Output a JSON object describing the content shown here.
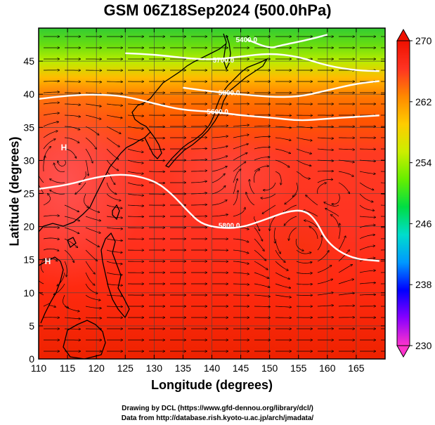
{
  "title": "GSM 06Z18Sep2024 (500.0hPa)",
  "xaxis": {
    "label": "Longitude (degrees)",
    "range": [
      110,
      170
    ],
    "ticks": [
      110,
      115,
      120,
      125,
      130,
      135,
      140,
      145,
      150,
      155,
      160,
      165
    ]
  },
  "yaxis": {
    "label": "Latitude  (degrees)",
    "range": [
      0,
      50
    ],
    "ticks": [
      0,
      5,
      10,
      15,
      20,
      25,
      30,
      35,
      40,
      45
    ]
  },
  "colorbar": {
    "range": [
      230,
      270
    ],
    "ticks": [
      230,
      238,
      246,
      254,
      262,
      270
    ],
    "colors": [
      "#ff33cc",
      "#8800ff",
      "#0000ff",
      "#0099ff",
      "#00ddcc",
      "#00dd44",
      "#66ee00",
      "#ccee00",
      "#ffcc00",
      "#ff8800",
      "#ff3322",
      "#ee1100"
    ]
  },
  "contours": [
    {
      "label": "5800.0",
      "points": [
        [
          110,
          25.7
        ],
        [
          115,
          26.3
        ],
        [
          120,
          27.5
        ],
        [
          125,
          28.0
        ],
        [
          130,
          27.0
        ],
        [
          133,
          25.0
        ],
        [
          136,
          22.2
        ],
        [
          138,
          20.5
        ],
        [
          141,
          19.8
        ],
        [
          145,
          19.8
        ],
        [
          149,
          21.0
        ],
        [
          153,
          22.3
        ],
        [
          156,
          22.5
        ],
        [
          158,
          21.0
        ],
        [
          160,
          17.5
        ],
        [
          164,
          15.2
        ],
        [
          169,
          14.8
        ]
      ]
    },
    {
      "label": "5600.0",
      "points": [
        [
          110,
          39.3
        ],
        [
          115,
          39.8
        ],
        [
          120,
          40.0
        ],
        [
          125,
          39.7
        ],
        [
          130,
          38.6
        ],
        [
          135,
          37.6
        ],
        [
          140,
          37.4
        ],
        [
          145,
          36.8
        ],
        [
          150,
          36.5
        ],
        [
          155,
          36.0
        ],
        [
          160,
          36.3
        ],
        [
          165,
          36.6
        ],
        [
          169,
          36.8
        ]
      ]
    },
    {
      "label": "5800.0",
      "points": [
        [
          135,
          41.0
        ],
        [
          140,
          40.4
        ],
        [
          145,
          40.0
        ],
        [
          150,
          39.6
        ],
        [
          155,
          39.6
        ],
        [
          160,
          40.6
        ],
        [
          165,
          41.6
        ],
        [
          169,
          42.0
        ]
      ]
    },
    {
      "label": "5700.0",
      "points": [
        [
          125,
          46.2
        ],
        [
          130,
          46.0
        ],
        [
          135,
          45.5
        ],
        [
          140,
          45.2
        ],
        [
          145,
          45.7
        ],
        [
          150,
          46.2
        ],
        [
          155,
          45.7
        ],
        [
          160,
          44.3
        ],
        [
          165,
          43.6
        ],
        [
          169,
          43.5
        ]
      ]
    },
    {
      "label": "5400.0",
      "points": [
        [
          146,
          48.3
        ],
        [
          150,
          46.9
        ],
        [
          152,
          47.4
        ],
        [
          156,
          48.1
        ],
        [
          160,
          49.0
        ]
      ]
    }
  ],
  "contour_label_positions": [
    {
      "text": "5800.0",
      "lon": 143,
      "lat": 20.2
    },
    {
      "text": "5600.0",
      "lon": 141,
      "lat": 37.4
    },
    {
      "text": "5800.0",
      "lon": 143,
      "lat": 40.3
    },
    {
      "text": "5700.0",
      "lon": 142,
      "lat": 45.2
    },
    {
      "text": "5400.0",
      "lon": 146,
      "lat": 48.3
    }
  ],
  "credits": {
    "line1": "Drawing by DCL (https://www.gfd-dennou.org/library/dcl/)",
    "line2": "Data from http://database.rish.kyoto-u.ac.jp/arch/jmadata/"
  }
}
